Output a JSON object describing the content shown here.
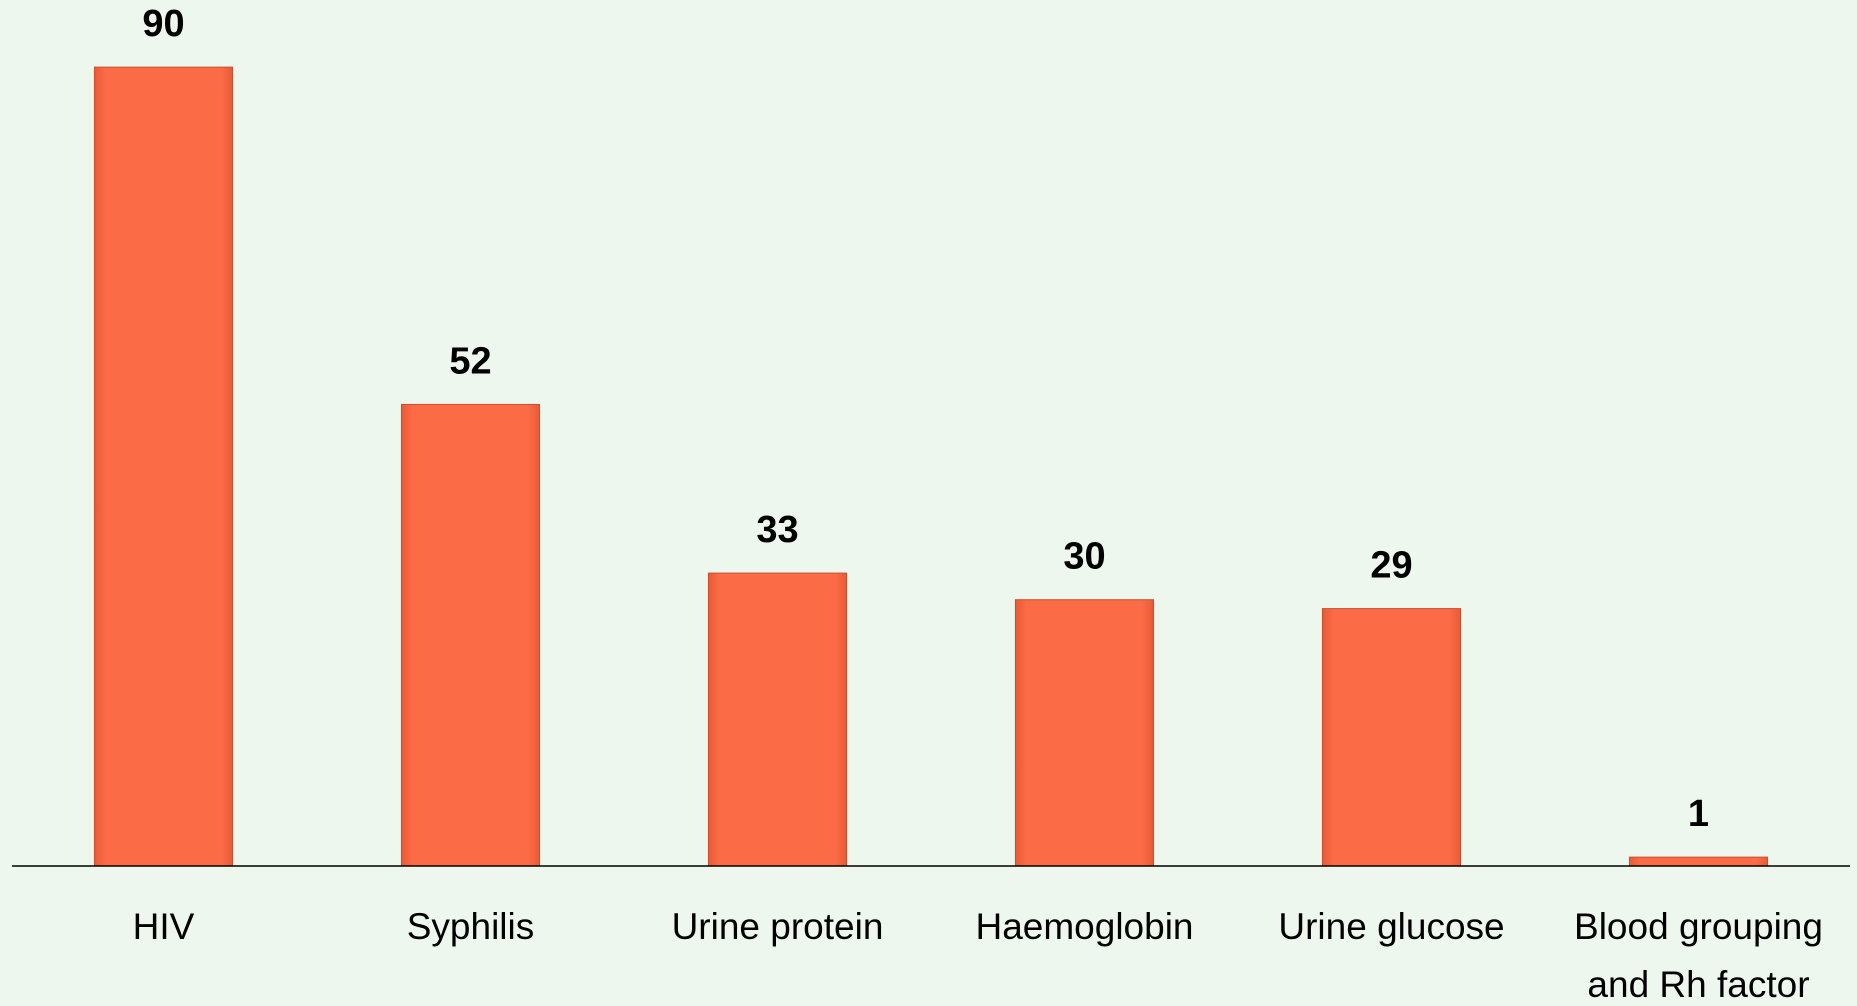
{
  "chart_data": {
    "type": "bar",
    "categories": [
      "HIV",
      "Syphilis",
      "Urine protein",
      "Haemoglobin",
      "Urine glucose",
      "Blood grouping and Rh factor"
    ],
    "values": [
      90,
      52,
      33,
      30,
      29,
      1
    ],
    "color": "#fb6b45",
    "ylim": [
      0,
      97
    ]
  }
}
